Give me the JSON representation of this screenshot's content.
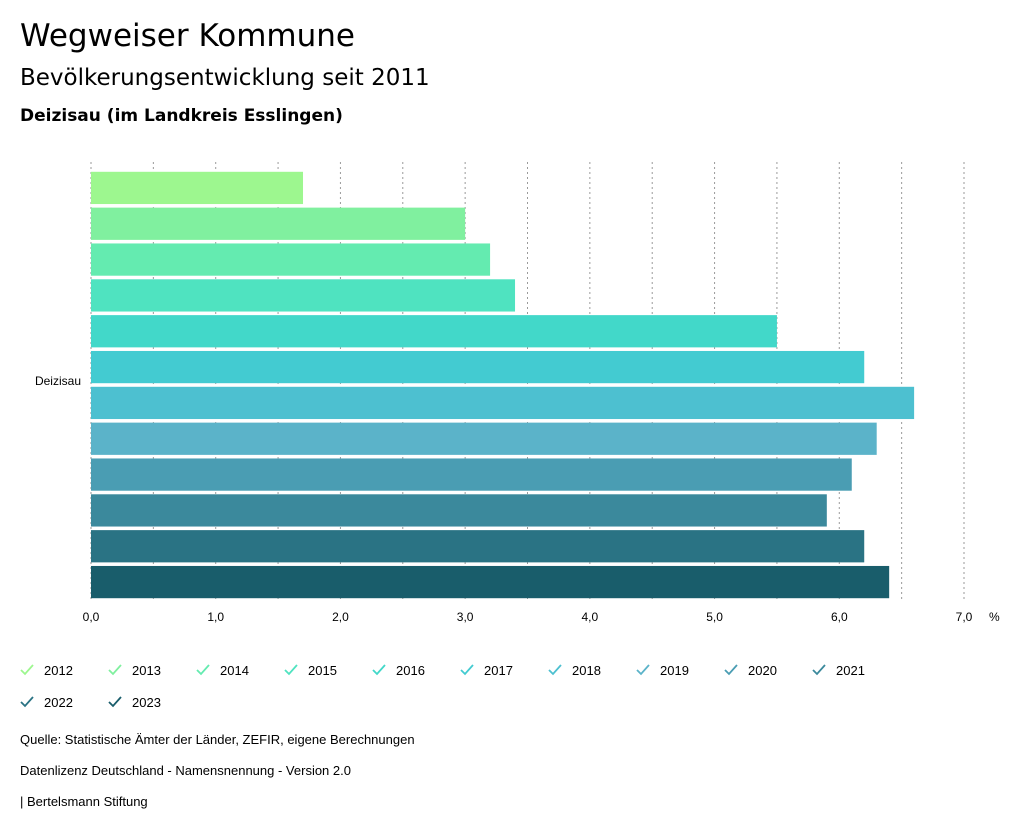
{
  "header": {
    "title": "Wegweiser Kommune",
    "subtitle": "Bevölkerungsentwicklung seit 2011",
    "region": "Deizisau (im Landkreis Esslingen)"
  },
  "chart_data": {
    "type": "bar",
    "orientation": "horizontal",
    "categories": [
      "Deizisau"
    ],
    "series": [
      {
        "name": "2012",
        "values": [
          1.7
        ],
        "color": "#9df78f"
      },
      {
        "name": "2013",
        "values": [
          3.0
        ],
        "color": "#80f09f"
      },
      {
        "name": "2014",
        "values": [
          3.2
        ],
        "color": "#64ebb0"
      },
      {
        "name": "2015",
        "values": [
          3.4
        ],
        "color": "#4fe3c0"
      },
      {
        "name": "2016",
        "values": [
          5.5
        ],
        "color": "#42d8c9"
      },
      {
        "name": "2017",
        "values": [
          6.2
        ],
        "color": "#43cbd1"
      },
      {
        "name": "2018",
        "values": [
          6.6
        ],
        "color": "#4dc0d0"
      },
      {
        "name": "2019",
        "values": [
          6.3
        ],
        "color": "#5bb3c9"
      },
      {
        "name": "2020",
        "values": [
          6.1
        ],
        "color": "#4a9db3"
      },
      {
        "name": "2021",
        "values": [
          5.9
        ],
        "color": "#3b899c"
      },
      {
        "name": "2022",
        "values": [
          6.2
        ],
        "color": "#2a7384"
      },
      {
        "name": "2023",
        "values": [
          6.4
        ],
        "color": "#195d6b"
      }
    ],
    "x_ticks": [
      "0,0",
      "1,0",
      "2,0",
      "3,0",
      "4,0",
      "5,0",
      "6,0",
      "7,0"
    ],
    "xlim": [
      0,
      7
    ],
    "x_unit": "%",
    "grid": true,
    "legend_position": "bottom"
  },
  "footer": {
    "source": "Quelle: Statistische Ämter der Länder, ZEFIR, eigene Berechnungen",
    "license": "Datenlizenz Deutschland - Namensnennung - Version 2.0",
    "publisher": "| Bertelsmann Stiftung"
  }
}
